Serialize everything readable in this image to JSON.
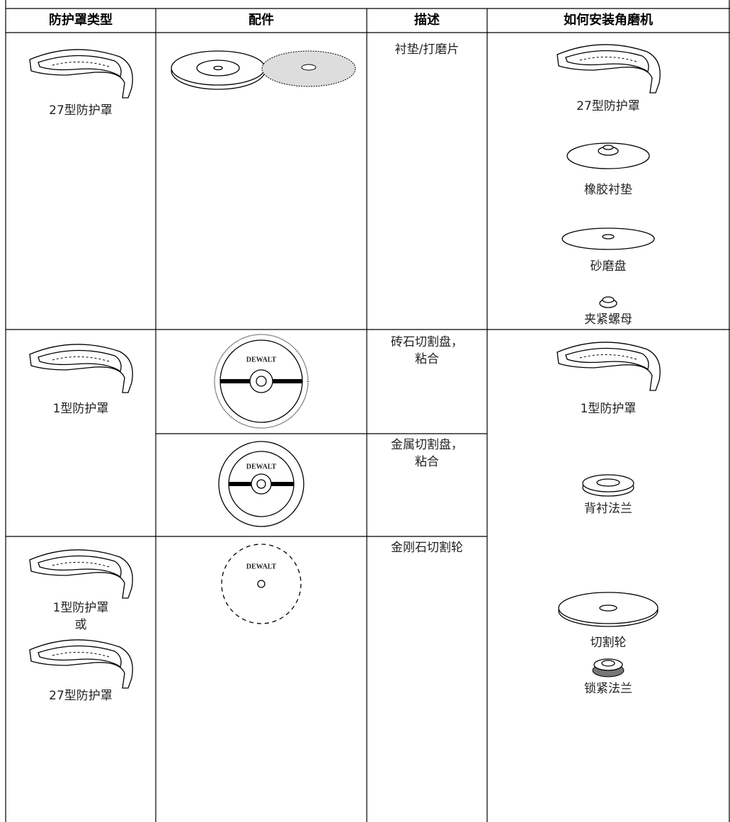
{
  "table": {
    "header": [
      "防护罩类型",
      "配件",
      "描述",
      "如何安装角磨机"
    ],
    "brand": "DEWALT",
    "rows": [
      {
        "guard": [
          "27型防护罩"
        ],
        "description": [
          "衬垫/打磨片"
        ],
        "mounting": [
          "27型防护罩",
          "橡胶衬垫",
          "砂磨盘",
          "夹紧螺母"
        ]
      },
      {
        "guard": [
          "1型防护罩"
        ],
        "description": [
          "砖石切割盘，",
          "粘合"
        ],
        "mounting": [
          "1型防护罩",
          "背衬法兰",
          "切割轮",
          "锁紧法兰"
        ]
      },
      {
        "description": [
          "金属切割盘，",
          "粘合"
        ]
      },
      {
        "guard": [
          "1型防护罩",
          "或",
          "27型防护罩"
        ],
        "description": [
          "金刚石切割轮"
        ]
      }
    ]
  }
}
